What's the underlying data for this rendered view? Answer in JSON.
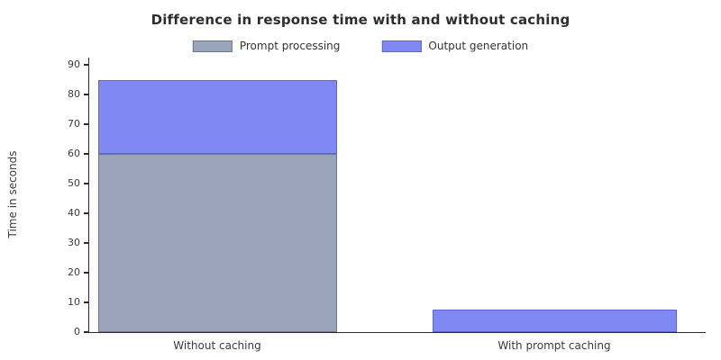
{
  "chart_data": {
    "type": "bar",
    "stacked": true,
    "title": "Difference in response time with and without caching",
    "categories": [
      "Without caching",
      "With prompt caching"
    ],
    "series": [
      {
        "name": "Prompt processing",
        "color": "#9aa5bb",
        "edge_color": "#6b7790",
        "values": [
          60,
          0
        ]
      },
      {
        "name": "Output generation",
        "color": "#8089f3",
        "edge_color": "#5d66c9",
        "values": [
          25,
          7.5
        ]
      }
    ],
    "xlabel": "",
    "ylabel": "Time in seconds",
    "yticks": [
      0,
      10,
      20,
      30,
      40,
      50,
      60,
      70,
      80,
      90
    ],
    "ylim": [
      0,
      92.5
    ],
    "grid": false,
    "legend_position": "upper center",
    "background_color": "#ffffff",
    "axis_color": "#2b2b2b"
  }
}
